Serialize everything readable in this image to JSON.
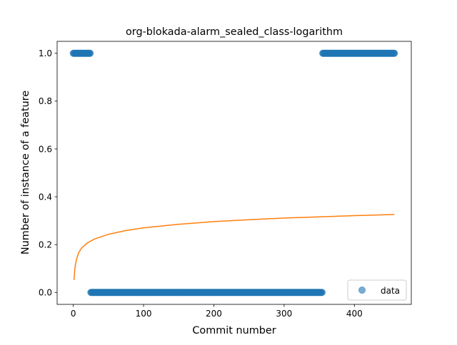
{
  "chart_data": {
    "type": "scatter",
    "title": "org-blokada-alarm_sealed_class-logarithm",
    "xlabel": "Commit number",
    "ylabel": "Number of instance of a feature",
    "xlim": [
      -23,
      481
    ],
    "ylim": [
      -0.05,
      1.05
    ],
    "xticks": [
      0,
      100,
      200,
      300,
      400
    ],
    "xtick_labels": [
      "0",
      "100",
      "200",
      "300",
      "400"
    ],
    "yticks": [
      0.0,
      0.2,
      0.4,
      0.6,
      0.8,
      1.0
    ],
    "ytick_labels": [
      "0.0",
      "0.2",
      "0.4",
      "0.6",
      "0.8",
      "1.0"
    ],
    "grid": false,
    "legend": {
      "position": "lower-right",
      "entries": [
        "data"
      ]
    },
    "series": [
      {
        "name": "data",
        "kind": "scatter",
        "color": "#1f77b4",
        "segments": [
          {
            "x_start": 0,
            "x_end": 24,
            "y": 1
          },
          {
            "x_start": 25,
            "x_end": 354,
            "y": 0
          },
          {
            "x_start": 355,
            "x_end": 457,
            "y": 1
          }
        ]
      },
      {
        "kind": "line",
        "color": "#ff7f0e",
        "x": [
          1,
          2,
          3,
          5,
          8,
          12,
          20,
          30,
          50,
          75,
          100,
          150,
          200,
          250,
          300,
          350,
          400,
          457
        ],
        "y": [
          0.052,
          0.092,
          0.115,
          0.143,
          0.168,
          0.186,
          0.207,
          0.223,
          0.243,
          0.259,
          0.27,
          0.285,
          0.296,
          0.304,
          0.311,
          0.316,
          0.321,
          0.326
        ]
      }
    ]
  }
}
